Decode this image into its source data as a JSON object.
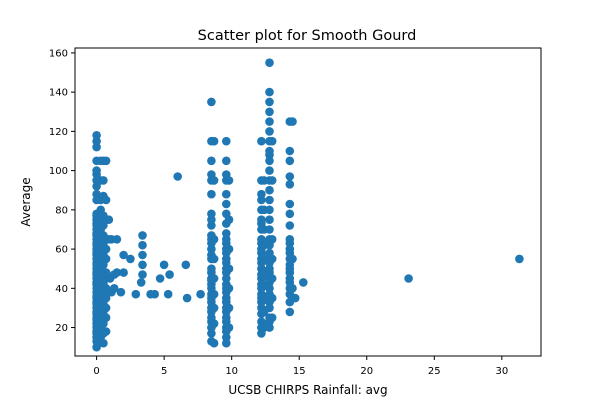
{
  "chart_data": {
    "type": "scatter",
    "title": "Scatter plot for Smooth Gourd",
    "xlabel": "UCSB CHIRPS Rainfall: avg",
    "ylabel": "Average",
    "xlim": [
      -1.6,
      32.9
    ],
    "ylim": [
      5.5,
      162.5
    ],
    "xticks": [
      0,
      5,
      10,
      15,
      20,
      25,
      30
    ],
    "yticks": [
      20,
      40,
      60,
      80,
      100,
      120,
      140,
      160
    ],
    "grid": false,
    "legend": "none",
    "marker_color": "#1f77b4",
    "series": [
      {
        "points": [
          [
            0,
            10
          ],
          [
            0,
            13
          ],
          [
            0,
            15
          ],
          [
            0,
            17
          ],
          [
            0,
            18
          ],
          [
            0,
            20
          ],
          [
            0,
            22
          ],
          [
            0,
            24
          ],
          [
            0,
            25
          ],
          [
            0,
            27
          ],
          [
            0,
            28
          ],
          [
            0,
            30
          ],
          [
            0,
            32
          ],
          [
            0,
            33
          ],
          [
            0,
            35
          ],
          [
            0,
            36
          ],
          [
            0,
            38
          ],
          [
            0,
            40
          ],
          [
            0,
            42
          ],
          [
            0,
            43
          ],
          [
            0,
            45
          ],
          [
            0,
            47
          ],
          [
            0,
            48
          ],
          [
            0,
            50
          ],
          [
            0,
            52
          ],
          [
            0,
            53
          ],
          [
            0,
            55
          ],
          [
            0,
            57
          ],
          [
            0,
            58
          ],
          [
            0,
            60
          ],
          [
            0,
            62
          ],
          [
            0,
            63
          ],
          [
            0,
            65
          ],
          [
            0,
            67
          ],
          [
            0,
            68
          ],
          [
            0,
            70
          ],
          [
            0,
            72
          ],
          [
            0,
            73
          ],
          [
            0,
            75
          ],
          [
            0,
            77
          ],
          [
            0,
            78
          ],
          [
            0,
            85
          ],
          [
            0,
            88
          ],
          [
            0,
            92
          ],
          [
            0,
            95
          ],
          [
            0,
            98
          ],
          [
            0,
            100
          ],
          [
            0,
            105
          ],
          [
            0,
            112
          ],
          [
            0,
            115
          ],
          [
            0,
            118
          ],
          [
            0.3,
            15
          ],
          [
            0.3,
            20
          ],
          [
            0.3,
            25
          ],
          [
            0.3,
            30
          ],
          [
            0.3,
            35
          ],
          [
            0.3,
            38
          ],
          [
            0.3,
            40
          ],
          [
            0.3,
            45
          ],
          [
            0.3,
            47
          ],
          [
            0.3,
            50
          ],
          [
            0.3,
            55
          ],
          [
            0.3,
            60
          ],
          [
            0.3,
            65
          ],
          [
            0.3,
            70
          ],
          [
            0.3,
            75
          ],
          [
            0.3,
            80
          ],
          [
            0.3,
            85
          ],
          [
            0.3,
            95
          ],
          [
            0.3,
            105
          ],
          [
            0.5,
            12
          ],
          [
            0.5,
            17
          ],
          [
            0.5,
            22
          ],
          [
            0.5,
            27
          ],
          [
            0.5,
            32
          ],
          [
            0.5,
            37
          ],
          [
            0.5,
            42
          ],
          [
            0.5,
            46
          ],
          [
            0.5,
            52
          ],
          [
            0.5,
            57
          ],
          [
            0.5,
            62
          ],
          [
            0.5,
            67
          ],
          [
            0.5,
            72
          ],
          [
            0.5,
            77
          ],
          [
            0.5,
            87
          ],
          [
            0.5,
            95
          ],
          [
            0.5,
            105
          ],
          [
            0.7,
            18
          ],
          [
            0.7,
            25
          ],
          [
            0.7,
            30
          ],
          [
            0.7,
            35
          ],
          [
            0.7,
            40
          ],
          [
            0.7,
            45
          ],
          [
            0.7,
            48
          ],
          [
            0.7,
            55
          ],
          [
            0.7,
            60
          ],
          [
            0.7,
            65
          ],
          [
            0.7,
            75
          ],
          [
            0.7,
            85
          ],
          [
            0.7,
            105
          ],
          [
            0.9,
            65
          ],
          [
            0.9,
            75
          ],
          [
            1,
            45
          ],
          [
            1.1,
            38
          ],
          [
            1.1,
            65
          ],
          [
            1.3,
            40
          ],
          [
            1.3,
            47
          ],
          [
            1.5,
            48
          ],
          [
            1.5,
            65
          ],
          [
            1.8,
            38
          ],
          [
            2,
            48
          ],
          [
            2,
            57
          ],
          [
            2.5,
            55
          ],
          [
            2.9,
            37
          ],
          [
            3.3,
            43
          ],
          [
            3.4,
            47
          ],
          [
            3.4,
            52
          ],
          [
            3.4,
            57
          ],
          [
            3.4,
            62
          ],
          [
            3.4,
            67
          ],
          [
            4,
            37
          ],
          [
            4.3,
            37
          ],
          [
            4.7,
            45
          ],
          [
            5,
            52
          ],
          [
            5.3,
            37
          ],
          [
            5.4,
            47
          ],
          [
            6,
            97
          ],
          [
            6.6,
            52
          ],
          [
            6.7,
            35
          ],
          [
            7.7,
            37
          ],
          [
            8.5,
            13
          ],
          [
            8.5,
            17
          ],
          [
            8.5,
            20
          ],
          [
            8.5,
            23
          ],
          [
            8.5,
            25
          ],
          [
            8.5,
            28
          ],
          [
            8.5,
            30
          ],
          [
            8.5,
            33
          ],
          [
            8.5,
            35
          ],
          [
            8.5,
            37
          ],
          [
            8.5,
            40
          ],
          [
            8.5,
            42
          ],
          [
            8.5,
            44
          ],
          [
            8.5,
            45
          ],
          [
            8.5,
            48
          ],
          [
            8.5,
            50
          ],
          [
            8.5,
            55
          ],
          [
            8.5,
            57
          ],
          [
            8.5,
            60
          ],
          [
            8.5,
            63
          ],
          [
            8.5,
            65
          ],
          [
            8.5,
            67
          ],
          [
            8.5,
            72
          ],
          [
            8.5,
            75
          ],
          [
            8.5,
            78
          ],
          [
            8.5,
            88
          ],
          [
            8.5,
            95
          ],
          [
            8.5,
            98
          ],
          [
            8.5,
            105
          ],
          [
            8.5,
            115
          ],
          [
            8.5,
            135
          ],
          [
            8.7,
            12
          ],
          [
            8.7,
            22
          ],
          [
            8.7,
            30
          ],
          [
            8.7,
            37
          ],
          [
            8.7,
            45
          ],
          [
            8.7,
            55
          ],
          [
            8.7,
            65
          ],
          [
            8.7,
            95
          ],
          [
            8.7,
            115
          ],
          [
            9.6,
            12
          ],
          [
            9.6,
            15
          ],
          [
            9.6,
            18
          ],
          [
            9.6,
            20
          ],
          [
            9.6,
            23
          ],
          [
            9.6,
            25
          ],
          [
            9.6,
            28
          ],
          [
            9.6,
            30
          ],
          [
            9.6,
            33
          ],
          [
            9.6,
            35
          ],
          [
            9.6,
            38
          ],
          [
            9.6,
            40
          ],
          [
            9.6,
            42
          ],
          [
            9.6,
            45
          ],
          [
            9.6,
            48
          ],
          [
            9.6,
            50
          ],
          [
            9.6,
            53
          ],
          [
            9.6,
            55
          ],
          [
            9.6,
            58
          ],
          [
            9.6,
            60
          ],
          [
            9.6,
            63
          ],
          [
            9.6,
            65
          ],
          [
            9.6,
            68
          ],
          [
            9.6,
            73
          ],
          [
            9.6,
            78
          ],
          [
            9.6,
            83
          ],
          [
            9.6,
            88
          ],
          [
            9.6,
            95
          ],
          [
            9.6,
            98
          ],
          [
            9.6,
            105
          ],
          [
            9.6,
            115
          ],
          [
            9.8,
            20
          ],
          [
            9.8,
            30
          ],
          [
            9.8,
            40
          ],
          [
            9.8,
            50
          ],
          [
            9.8,
            60
          ],
          [
            9.8,
            75
          ],
          [
            9.8,
            95
          ],
          [
            12.2,
            17
          ],
          [
            12.2,
            20
          ],
          [
            12.2,
            23
          ],
          [
            12.2,
            27
          ],
          [
            12.2,
            30
          ],
          [
            12.2,
            33
          ],
          [
            12.2,
            35
          ],
          [
            12.2,
            37
          ],
          [
            12.2,
            40
          ],
          [
            12.2,
            42
          ],
          [
            12.2,
            45
          ],
          [
            12.2,
            47
          ],
          [
            12.2,
            50
          ],
          [
            12.2,
            53
          ],
          [
            12.2,
            55
          ],
          [
            12.2,
            58
          ],
          [
            12.2,
            60
          ],
          [
            12.2,
            63
          ],
          [
            12.2,
            65
          ],
          [
            12.2,
            70
          ],
          [
            12.2,
            73
          ],
          [
            12.2,
            75
          ],
          [
            12.2,
            80
          ],
          [
            12.2,
            85
          ],
          [
            12.2,
            88
          ],
          [
            12.2,
            95
          ],
          [
            12.2,
            115
          ],
          [
            12.4,
            20
          ],
          [
            12.4,
            28
          ],
          [
            12.4,
            35
          ],
          [
            12.4,
            42
          ],
          [
            12.4,
            48
          ],
          [
            12.4,
            55
          ],
          [
            12.4,
            62
          ],
          [
            12.4,
            70
          ],
          [
            12.4,
            80
          ],
          [
            12.4,
            95
          ],
          [
            12.8,
            20
          ],
          [
            12.8,
            23
          ],
          [
            12.8,
            25
          ],
          [
            12.8,
            30
          ],
          [
            12.8,
            33
          ],
          [
            12.8,
            37
          ],
          [
            12.8,
            40
          ],
          [
            12.8,
            43
          ],
          [
            12.8,
            45
          ],
          [
            12.8,
            48
          ],
          [
            12.8,
            50
          ],
          [
            12.8,
            53
          ],
          [
            12.8,
            55
          ],
          [
            12.8,
            58
          ],
          [
            12.8,
            62
          ],
          [
            12.8,
            65
          ],
          [
            12.8,
            70
          ],
          [
            12.8,
            75
          ],
          [
            12.8,
            80
          ],
          [
            12.8,
            85
          ],
          [
            12.8,
            90
          ],
          [
            12.8,
            95
          ],
          [
            12.8,
            100
          ],
          [
            12.8,
            105
          ],
          [
            12.8,
            108
          ],
          [
            12.8,
            110
          ],
          [
            12.8,
            115
          ],
          [
            12.8,
            120
          ],
          [
            12.8,
            125
          ],
          [
            12.8,
            130
          ],
          [
            12.8,
            135
          ],
          [
            12.8,
            140
          ],
          [
            12.8,
            155
          ],
          [
            13,
            25
          ],
          [
            13,
            35
          ],
          [
            13,
            45
          ],
          [
            13,
            55
          ],
          [
            13,
            65
          ],
          [
            13,
            95
          ],
          [
            13,
            115
          ],
          [
            14.3,
            28
          ],
          [
            14.3,
            33
          ],
          [
            14.3,
            37
          ],
          [
            14.3,
            40
          ],
          [
            14.3,
            43
          ],
          [
            14.3,
            45
          ],
          [
            14.3,
            48
          ],
          [
            14.3,
            50
          ],
          [
            14.3,
            52
          ],
          [
            14.3,
            55
          ],
          [
            14.3,
            58
          ],
          [
            14.3,
            60
          ],
          [
            14.3,
            63
          ],
          [
            14.3,
            65
          ],
          [
            14.3,
            72
          ],
          [
            14.3,
            78
          ],
          [
            14.3,
            83
          ],
          [
            14.3,
            93
          ],
          [
            14.3,
            97
          ],
          [
            14.3,
            105
          ],
          [
            14.3,
            110
          ],
          [
            14.3,
            125
          ],
          [
            14.5,
            40
          ],
          [
            14.5,
            55
          ],
          [
            14.5,
            125
          ],
          [
            14.7,
            35
          ],
          [
            15.3,
            43
          ],
          [
            23.1,
            45
          ],
          [
            31.3,
            55
          ]
        ]
      }
    ]
  }
}
